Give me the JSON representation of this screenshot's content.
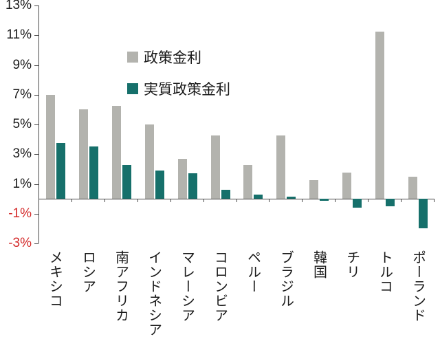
{
  "chart_data": {
    "type": "bar",
    "title": "",
    "xlabel": "",
    "ylabel": "",
    "categories": [
      "メキシコ",
      "ロシア",
      "南アフリカ",
      "インドネシア",
      "マレーシア",
      "コロンビア",
      "ペルー",
      "ブラジル",
      "韓国",
      "チリ",
      "トルコ",
      "ポーランド"
    ],
    "series": [
      {
        "name": "政策金利",
        "color": "#b3b3ae",
        "values": [
          7.0,
          6.0,
          6.25,
          5.0,
          2.7,
          4.25,
          2.25,
          4.25,
          1.25,
          1.75,
          11.25,
          1.5
        ]
      },
      {
        "name": "実質政策金利",
        "color": "#16706b",
        "values": [
          3.75,
          3.5,
          2.25,
          1.9,
          1.7,
          0.6,
          0.3,
          0.15,
          -0.15,
          -0.6,
          -0.5,
          -2.0
        ]
      }
    ],
    "ylim": [
      -3,
      13
    ],
    "yticks": [
      13,
      11,
      9,
      7,
      5,
      3,
      1,
      -1,
      -3
    ],
    "ytick_suffix": "%",
    "tick_label_color": "#1a1a1a",
    "negative_tick_color": "#d42a2a",
    "axis_color": "#444444",
    "grid": false,
    "legend_position": "upper-left-inside"
  }
}
